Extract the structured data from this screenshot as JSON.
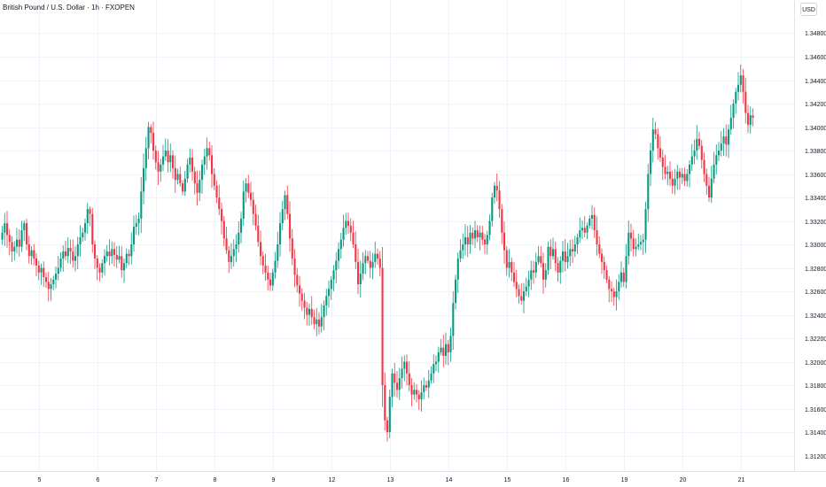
{
  "header": {
    "title": "British Pound / U.S. Dollar · 1h · FXOPEN",
    "currency_button": "USD"
  },
  "colors": {
    "up": "#089981",
    "down": "#f23645",
    "grid": "#f0f3fa",
    "text": "#131722"
  },
  "chart_data": {
    "type": "candlestick",
    "title": "British Pound / U.S. Dollar · 1h · FXOPEN",
    "ylabel": "USD",
    "ylim": [
      1.31,
      1.349
    ],
    "grid": true,
    "y_ticks": [
      "1.34800",
      "1.34600",
      "1.34400",
      "1.34200",
      "1.34000",
      "1.33800",
      "1.33600",
      "1.33400",
      "1.33200",
      "1.33000",
      "1.32800",
      "1.32600",
      "1.32400",
      "1.32200",
      "1.32000",
      "1.31800",
      "1.31600",
      "1.31400",
      "1.31200"
    ],
    "x_ticks": [
      {
        "label": "5",
        "day": 5
      },
      {
        "label": "6",
        "day": 6
      },
      {
        "label": "7",
        "day": 7
      },
      {
        "label": "8",
        "day": 8
      },
      {
        "label": "9",
        "day": 9
      },
      {
        "label": "12",
        "day": 12
      },
      {
        "label": "13",
        "day": 13
      },
      {
        "label": "14",
        "day": 14
      },
      {
        "label": "15",
        "day": 15
      },
      {
        "label": "16",
        "day": 16
      },
      {
        "label": "19",
        "day": 19
      },
      {
        "label": "20",
        "day": 20
      },
      {
        "label": "21",
        "day": 21
      }
    ],
    "trading_days": [
      5,
      6,
      7,
      8,
      9,
      12,
      13,
      14,
      15,
      16,
      19,
      20,
      21
    ],
    "closes": [
      1.331,
      1.3318,
      1.3308,
      1.3302,
      1.3294,
      1.3298,
      1.3304,
      1.3298,
      1.3312,
      1.3318,
      1.33,
      1.329,
      1.3295,
      1.3288,
      1.3282,
      1.3276,
      1.328,
      1.3272,
      1.3268,
      1.3262,
      1.3266,
      1.327,
      1.3275,
      1.328,
      1.3288,
      1.3294,
      1.329,
      1.3297,
      1.3294,
      1.3286,
      1.329,
      1.33,
      1.3306,
      1.331,
      1.3318,
      1.333,
      1.3326,
      1.33,
      1.3288,
      1.328,
      1.3276,
      1.3284,
      1.329,
      1.3294,
      1.329,
      1.3296,
      1.3291,
      1.3287,
      1.329,
      1.3278,
      1.3284,
      1.3292,
      1.329,
      1.33,
      1.3315,
      1.3318,
      1.3322,
      1.3345,
      1.3365,
      1.3382,
      1.34,
      1.3395,
      1.338,
      1.337,
      1.3362,
      1.3368,
      1.3375,
      1.338,
      1.337,
      1.3376,
      1.3365,
      1.3355,
      1.336,
      1.3352,
      1.3345,
      1.3356,
      1.3368,
      1.3374,
      1.3362,
      1.3352,
      1.3344,
      1.3355,
      1.3368,
      1.3375,
      1.3382,
      1.3376,
      1.336,
      1.335,
      1.334,
      1.333,
      1.332,
      1.3305,
      1.3295,
      1.3285,
      1.329,
      1.3296,
      1.33,
      1.331,
      1.3322,
      1.3345,
      1.3352,
      1.3344,
      1.3338,
      1.3326,
      1.3316,
      1.3302,
      1.329,
      1.3282,
      1.3276,
      1.327,
      1.3265,
      1.3276,
      1.3286,
      1.33,
      1.3318,
      1.333,
      1.3342,
      1.3326,
      1.3305,
      1.3288,
      1.3274,
      1.3265,
      1.3258,
      1.3252,
      1.3246,
      1.324,
      1.3245,
      1.3238,
      1.3232,
      1.3236,
      1.323,
      1.3238,
      1.3248,
      1.3256,
      1.3262,
      1.327,
      1.3278,
      1.3286,
      1.3296,
      1.3304,
      1.3314,
      1.332,
      1.3316,
      1.331,
      1.33,
      1.3285,
      1.3266,
      1.3275,
      1.3284,
      1.329,
      1.3286,
      1.328,
      1.3285,
      1.3292,
      1.3288,
      1.328,
      1.318,
      1.315,
      1.314,
      1.317,
      1.319,
      1.3182,
      1.3176,
      1.3186,
      1.3194,
      1.32,
      1.319,
      1.318,
      1.3172,
      1.3176,
      1.3172,
      1.3168,
      1.3174,
      1.318,
      1.3178,
      1.3184,
      1.319,
      1.3198,
      1.32,
      1.3208,
      1.3212,
      1.3205,
      1.3215,
      1.3208,
      1.3222,
      1.325,
      1.327,
      1.3288,
      1.3295,
      1.33,
      1.3306,
      1.33,
      1.331,
      1.3305,
      1.3312,
      1.3306,
      1.331,
      1.3304,
      1.33,
      1.3308,
      1.332,
      1.334,
      1.335,
      1.3346,
      1.333,
      1.331,
      1.3295,
      1.328,
      1.3285,
      1.3276,
      1.3268,
      1.3262,
      1.3256,
      1.3252,
      1.326,
      1.3264,
      1.327,
      1.3278,
      1.3276,
      1.3285,
      1.329,
      1.3284,
      1.327,
      1.3278,
      1.3298,
      1.329,
      1.3296,
      1.3284,
      1.3276,
      1.3286,
      1.3294,
      1.3285,
      1.329,
      1.3296,
      1.3294,
      1.33,
      1.3306,
      1.3312,
      1.3314,
      1.331,
      1.3316,
      1.3322,
      1.3325,
      1.3312,
      1.33,
      1.3292,
      1.3285,
      1.3278,
      1.327,
      1.3262,
      1.326,
      1.3255,
      1.326,
      1.3268,
      1.3276,
      1.3268,
      1.329,
      1.331,
      1.3305,
      1.3296,
      1.3298,
      1.33,
      1.3302,
      1.3304,
      1.333,
      1.336,
      1.338,
      1.3398,
      1.3394,
      1.3382,
      1.3374,
      1.3366,
      1.336,
      1.3362,
      1.3356,
      1.335,
      1.3356,
      1.3362,
      1.3357,
      1.336,
      1.3354,
      1.336,
      1.3368,
      1.3375,
      1.338,
      1.339,
      1.3384,
      1.3372,
      1.336,
      1.335,
      1.334,
      1.3356,
      1.3368,
      1.3376,
      1.338,
      1.3386,
      1.3392,
      1.3385,
      1.3398,
      1.3408,
      1.342,
      1.343,
      1.3436,
      1.3444,
      1.343,
      1.3412,
      1.3402,
      1.341,
      1.3408
    ]
  }
}
